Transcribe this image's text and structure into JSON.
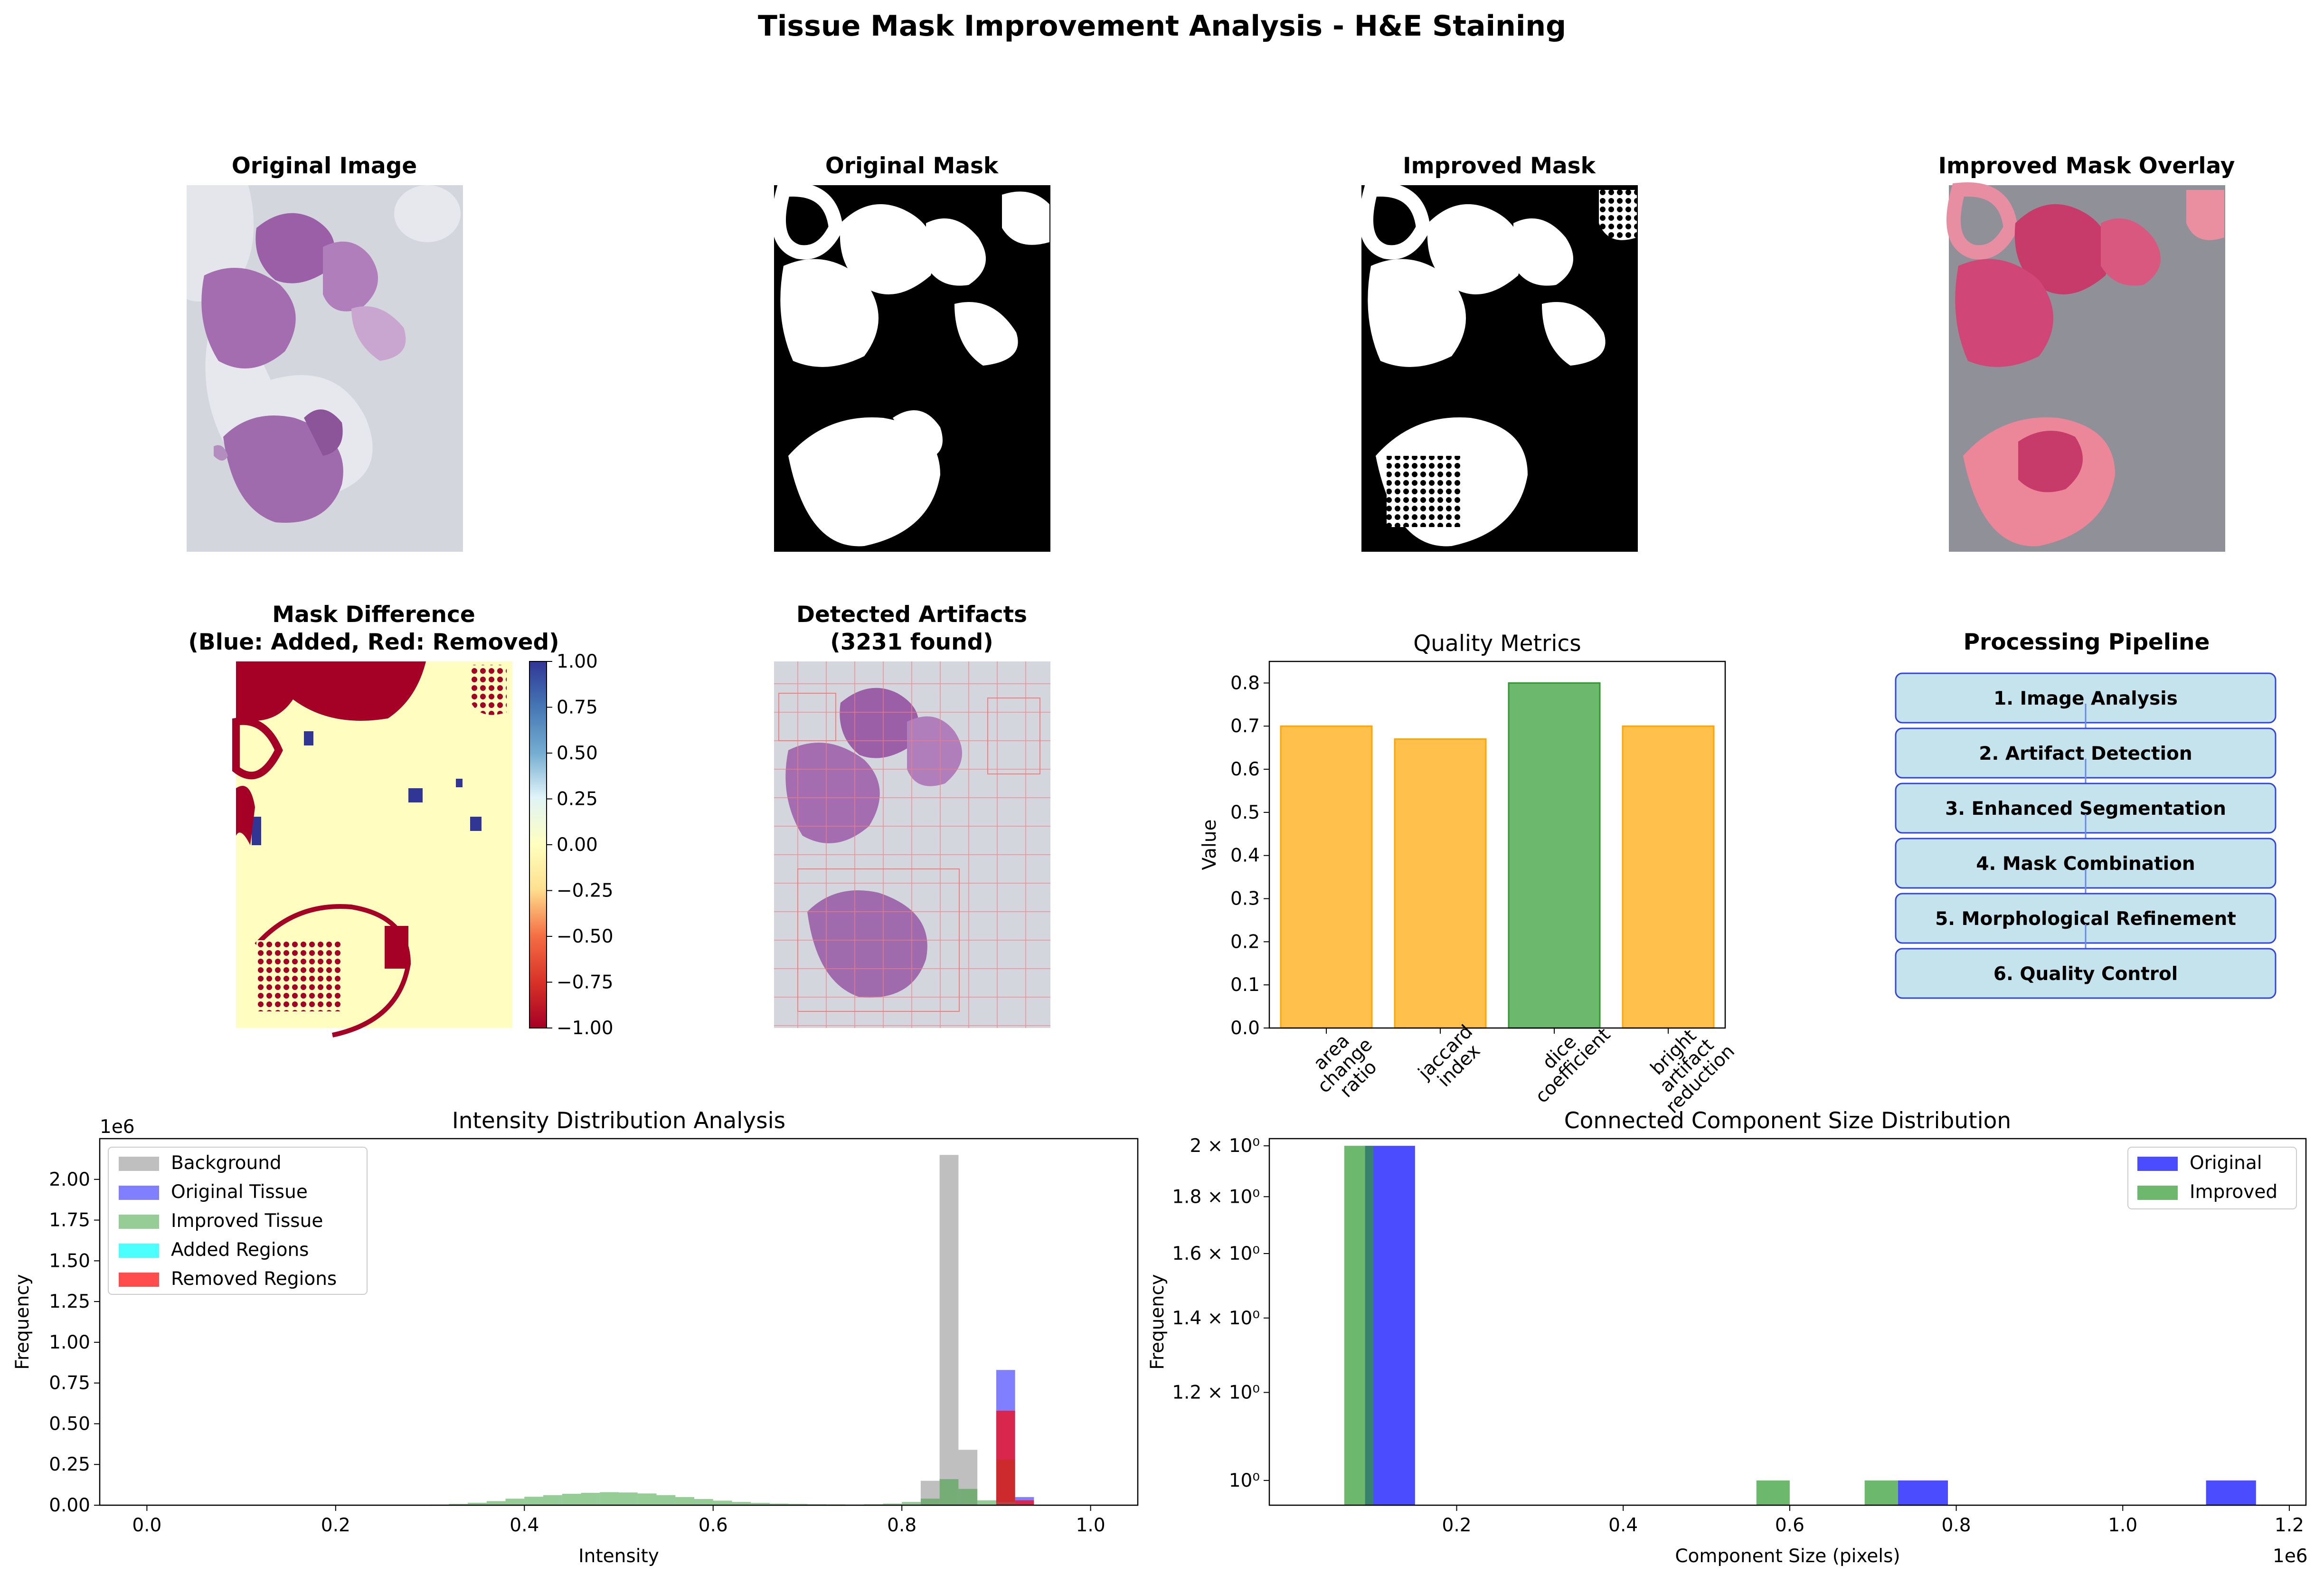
{
  "figure": {
    "suptitle": "Tissue Mask Improvement Analysis - H&E Staining"
  },
  "panels": {
    "original_image": {
      "title": "Original Image"
    },
    "original_mask": {
      "title": "Original Mask"
    },
    "improved_mask": {
      "title": "Improved Mask"
    },
    "overlay": {
      "title": "Improved Mask Overlay"
    },
    "mask_difference": {
      "title_line1": "Mask Difference",
      "title_line2": "(Blue: Added, Red: Removed)",
      "colorbar_ticks": [
        "1.00",
        "0.75",
        "0.50",
        "0.25",
        "0.00",
        "−0.25",
        "−0.50",
        "−0.75",
        "−1.00"
      ]
    },
    "artifacts": {
      "title_line1": "Detected Artifacts",
      "title_line2": "(3231 found)"
    },
    "pipeline": {
      "title": "Processing Pipeline",
      "steps": [
        "1. Image Analysis",
        "2. Artifact Detection",
        "3. Enhanced Segmentation",
        "4. Mask Combination",
        "5. Morphological Refinement",
        "6. Quality Control"
      ]
    }
  },
  "colors": {
    "orange": "#FFA500",
    "green": "#2E9A2E",
    "blue": "#0000FF",
    "gray": "#808080",
    "cyan": "#00FFFF",
    "red": "#FF0000",
    "pipeline_box": "#C5E3EC",
    "pipeline_edge": "#3344DD"
  },
  "chart_data": [
    {
      "id": "quality",
      "type": "bar",
      "title": "Quality Metrics",
      "ylabel": "Value",
      "xlabel": "",
      "categories": [
        "area\nchange\nratio",
        "jaccard\nindex",
        "dice\ncoefficient",
        "bright\nartifact\nreduction"
      ],
      "values": [
        0.7,
        0.67,
        0.8,
        0.7
      ],
      "bar_colors": [
        "orange",
        "orange",
        "green",
        "orange"
      ],
      "ylim": [
        0,
        0.85
      ],
      "yticks": [
        "0.0",
        "0.1",
        "0.2",
        "0.3",
        "0.4",
        "0.5",
        "0.6",
        "0.7",
        "0.8"
      ]
    },
    {
      "id": "intensity",
      "type": "bar",
      "title": "Intensity Distribution Analysis",
      "xlabel": "Intensity",
      "ylabel": "Frequency",
      "y_offset_label": "1e6",
      "xlim": [
        -0.05,
        1.05
      ],
      "ylim": [
        0,
        2.25
      ],
      "xticks": [
        "0.0",
        "0.2",
        "0.4",
        "0.6",
        "0.8",
        "1.0"
      ],
      "yticks": [
        "0.00",
        "0.25",
        "0.50",
        "0.75",
        "1.00",
        "1.25",
        "1.50",
        "1.75",
        "2.00"
      ],
      "legend": [
        "Background",
        "Original Tissue",
        "Improved Tissue",
        "Added Regions",
        "Removed Regions"
      ],
      "bin_width": 0.02,
      "series": [
        {
          "name": "Background",
          "color": "gray",
          "bins": [
            [
              0.82,
              0.15
            ],
            [
              0.84,
              2.15
            ],
            [
              0.86,
              0.34
            ]
          ]
        },
        {
          "name": "Original Tissue",
          "color": "blue",
          "bins": [
            [
              0.9,
              0.83
            ],
            [
              0.92,
              0.05
            ]
          ]
        },
        {
          "name": "Improved Tissue",
          "color": "green",
          "bins": [
            [
              0.3,
              0.004
            ],
            [
              0.32,
              0.008
            ],
            [
              0.34,
              0.015
            ],
            [
              0.36,
              0.025
            ],
            [
              0.38,
              0.04
            ],
            [
              0.4,
              0.052
            ],
            [
              0.42,
              0.062
            ],
            [
              0.44,
              0.07
            ],
            [
              0.46,
              0.076
            ],
            [
              0.48,
              0.08
            ],
            [
              0.5,
              0.078
            ],
            [
              0.52,
              0.072
            ],
            [
              0.54,
              0.062
            ],
            [
              0.56,
              0.05
            ],
            [
              0.58,
              0.038
            ],
            [
              0.6,
              0.028
            ],
            [
              0.62,
              0.02
            ],
            [
              0.64,
              0.014
            ],
            [
              0.66,
              0.01
            ],
            [
              0.68,
              0.008
            ],
            [
              0.7,
              0.006
            ],
            [
              0.72,
              0.005
            ],
            [
              0.74,
              0.004
            ],
            [
              0.76,
              0.006
            ],
            [
              0.78,
              0.01
            ],
            [
              0.8,
              0.02
            ],
            [
              0.82,
              0.04
            ],
            [
              0.84,
              0.16
            ],
            [
              0.86,
              0.1
            ],
            [
              0.88,
              0.03
            ],
            [
              0.9,
              0.28
            ]
          ]
        },
        {
          "name": "Added Regions",
          "color": "cyan",
          "bins": [
            [
              0.9,
              0.02
            ]
          ]
        },
        {
          "name": "Removed Regions",
          "color": "red",
          "bins": [
            [
              0.9,
              0.58
            ],
            [
              0.92,
              0.03
            ]
          ]
        }
      ]
    },
    {
      "id": "components",
      "type": "bar",
      "title": "Connected Component Size Distribution",
      "xlabel": "Component Size (pixels)",
      "ylabel": "Frequency",
      "x_offset_label": "1e6",
      "yscale": "log",
      "xlim": [
        0.0,
        1.2
      ],
      "ylim": [
        0.95,
        2.03
      ],
      "xticks": [
        "0.2",
        "0.4",
        "0.6",
        "0.8",
        "1.0",
        "1.2"
      ],
      "yticks": [
        "10⁰",
        "1.2 × 10⁰",
        "1.4 × 10⁰",
        "1.6 × 10⁰",
        "1.8 × 10⁰",
        "2 × 10⁰"
      ],
      "legend": [
        "Original",
        "Improved"
      ],
      "series": [
        {
          "name": "Original",
          "color": "blue",
          "bars": [
            [
              0.09,
              0.15,
              2
            ],
            [
              0.73,
              0.79,
              1
            ],
            [
              1.1,
              1.16,
              1
            ]
          ]
        },
        {
          "name": "Improved",
          "color": "green",
          "bars": [
            [
              0.065,
              0.1,
              2
            ],
            [
              0.56,
              0.6,
              1
            ],
            [
              0.69,
              0.73,
              1
            ]
          ]
        }
      ]
    }
  ]
}
